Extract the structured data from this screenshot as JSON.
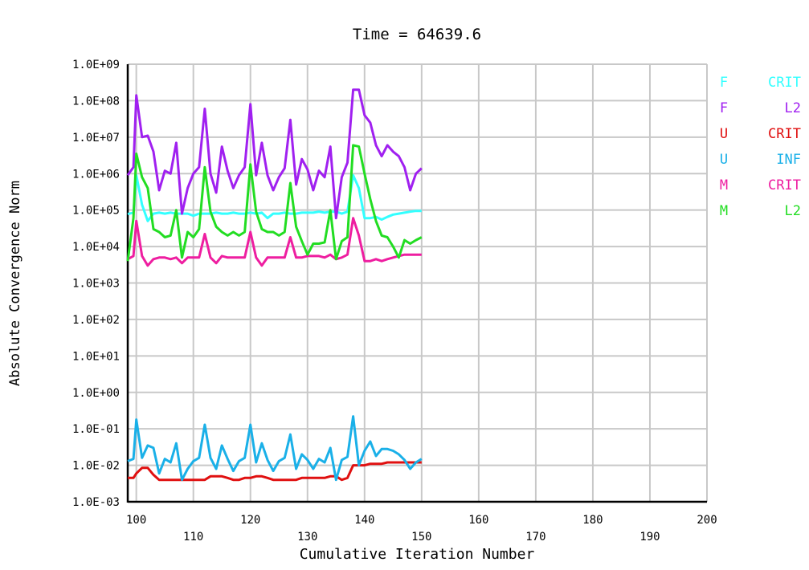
{
  "chart_data": {
    "type": "line",
    "title": "Time = 64639.6",
    "xlabel": "Cumulative Iteration Number",
    "ylabel": "Absolute Convergence Norm",
    "xlim": [
      98.5,
      200
    ],
    "ylim": [
      0.001,
      1000000000.0
    ],
    "yscale": "log",
    "grid": true,
    "legend_position": "right",
    "x_ticks": [
      100,
      110,
      120,
      130,
      140,
      150,
      160,
      170,
      180,
      190,
      200
    ],
    "x_tick_labels": [
      "100",
      "110",
      "120",
      "130",
      "140",
      "150",
      "160",
      "170",
      "180",
      "190",
      "200"
    ],
    "y_ticks": [
      0.001,
      0.01,
      0.1,
      1.0,
      10.0,
      100.0,
      1000.0,
      10000.0,
      100000.0,
      1000000.0,
      10000000.0,
      100000000.0,
      1000000000.0
    ],
    "y_tick_labels": [
      "1.0E-03",
      "1.0E-02",
      "1.0E-01",
      "1.0E+00",
      "1.0E+01",
      "1.0E+02",
      "1.0E+03",
      "1.0E+04",
      "1.0E+05",
      "1.0E+06",
      "1.0E+07",
      "1.0E+08",
      "1.0E+09"
    ],
    "x": [
      98.5,
      99.5,
      100,
      101,
      102,
      103,
      104,
      105,
      106,
      107,
      108,
      109,
      110,
      111,
      112,
      113,
      114,
      115,
      116,
      117,
      118,
      119,
      120,
      121,
      122,
      123,
      124,
      125,
      126,
      127,
      128,
      129,
      130,
      131,
      132,
      133,
      134,
      135,
      136,
      137,
      138,
      139,
      140,
      141,
      142,
      143,
      144,
      145,
      146,
      147,
      148,
      149,
      150
    ],
    "series": [
      {
        "name": "F CRIT",
        "label_left": "F",
        "label_right": "CRIT",
        "color": "#33ffff",
        "values": [
          78000.0,
          85000.0,
          900000.0,
          140000.0,
          50000.0,
          80000.0,
          85000.0,
          80000.0,
          85000.0,
          80000.0,
          80000.0,
          80000.0,
          70000.0,
          80000.0,
          80000.0,
          80000.0,
          85000.0,
          80000.0,
          80000.0,
          85000.0,
          80000.0,
          80000.0,
          85000.0,
          80000.0,
          85000.0,
          60000.0,
          80000.0,
          80000.0,
          85000.0,
          80000.0,
          80000.0,
          85000.0,
          85000.0,
          85000.0,
          90000.0,
          85000.0,
          90000.0,
          90000.0,
          80000.0,
          90000.0,
          900000.0,
          400000.0,
          60000.0,
          60000.0,
          65000.0,
          55000.0,
          65000.0,
          75000.0,
          80000.0,
          85000.0,
          90000.0,
          95000.0,
          95000.0
        ]
      },
      {
        "name": "F L2",
        "label_left": "F",
        "label_right": "L2",
        "color": "#a020f0",
        "values": [
          900000.0,
          1500000.0,
          140000000.0,
          10000000.0,
          11000000.0,
          4000000.0,
          350000.0,
          1200000.0,
          1000000.0,
          7000000.0,
          80000.0,
          400000.0,
          1000000.0,
          1500000.0,
          60000000.0,
          1000000.0,
          300000.0,
          5500000.0,
          1200000.0,
          400000.0,
          900000.0,
          1500000.0,
          80000000.0,
          900000.0,
          7000000.0,
          900000.0,
          350000.0,
          800000.0,
          1400000.0,
          30000000.0,
          500000.0,
          2500000.0,
          1300000.0,
          350000.0,
          1200000.0,
          800000.0,
          5500000.0,
          60000.0,
          800000.0,
          2000000.0,
          200000000.0,
          200000000.0,
          40000000.0,
          25000000.0,
          6000000.0,
          3000000.0,
          6000000.0,
          4000000.0,
          3000000.0,
          1500000.0,
          350000.0,
          1000000.0,
          1400000.0
        ]
      },
      {
        "name": "U CRIT",
        "label_left": "U",
        "label_right": "CRIT",
        "color": "#e01010",
        "values": [
          0.0045,
          0.0045,
          0.006,
          0.0085,
          0.0085,
          0.0055,
          0.004,
          0.004,
          0.004,
          0.004,
          0.004,
          0.004,
          0.004,
          0.004,
          0.004,
          0.005,
          0.005,
          0.005,
          0.0045,
          0.004,
          0.004,
          0.0045,
          0.0045,
          0.005,
          0.005,
          0.0045,
          0.004,
          0.004,
          0.004,
          0.004,
          0.004,
          0.0045,
          0.0045,
          0.0045,
          0.0045,
          0.0045,
          0.005,
          0.005,
          0.004,
          0.0045,
          0.01,
          0.01,
          0.01,
          0.011,
          0.011,
          0.011,
          0.012,
          0.012,
          0.012,
          0.012,
          0.012,
          0.012,
          0.012
        ]
      },
      {
        "name": "U INF",
        "label_left": "U",
        "label_right": "INF",
        "color": "#1ab0e8",
        "values": [
          0.013,
          0.015,
          0.18,
          0.016,
          0.035,
          0.03,
          0.006,
          0.015,
          0.012,
          0.04,
          0.004,
          0.008,
          0.013,
          0.016,
          0.13,
          0.016,
          0.008,
          0.035,
          0.015,
          0.007,
          0.013,
          0.016,
          0.13,
          0.012,
          0.04,
          0.014,
          0.007,
          0.013,
          0.016,
          0.07,
          0.008,
          0.02,
          0.014,
          0.008,
          0.015,
          0.012,
          0.03,
          0.004,
          0.014,
          0.017,
          0.22,
          0.01,
          0.025,
          0.045,
          0.018,
          0.028,
          0.028,
          0.025,
          0.02,
          0.014,
          0.008,
          0.012,
          0.015
        ]
      },
      {
        "name": "M CRIT",
        "label_left": "M",
        "label_right": "CRIT",
        "color": "#ee1ea0",
        "values": [
          4500.0,
          5500.0,
          50000.0,
          5500.0,
          3000.0,
          4500.0,
          5000.0,
          5000.0,
          4500.0,
          5000.0,
          3500.0,
          5000.0,
          5000.0,
          5000.0,
          22000.0,
          5000.0,
          3500.0,
          5500.0,
          5000.0,
          5000.0,
          5000.0,
          5000.0,
          25000.0,
          5000.0,
          3000.0,
          5000.0,
          5000.0,
          5000.0,
          5000.0,
          18000.0,
          5000.0,
          5000.0,
          5500.0,
          5500.0,
          5500.0,
          5000.0,
          6000.0,
          4500.0,
          5000.0,
          6000.0,
          60000.0,
          20000.0,
          4000.0,
          4000.0,
          4500.0,
          4000.0,
          4500.0,
          5000.0,
          5500.0,
          6000.0,
          6000.0,
          6000.0,
          6000.0
        ]
      },
      {
        "name": "M L2",
        "label_left": "M",
        "label_right": "L2",
        "color": "#22dd22",
        "values": [
          4000.0,
          60000.0,
          3500000.0,
          800000.0,
          400000.0,
          30000.0,
          25000.0,
          18000.0,
          20000.0,
          100000.0,
          5000.0,
          25000.0,
          18000.0,
          30000.0,
          1500000.0,
          90000.0,
          35000.0,
          25000.0,
          20000.0,
          25000.0,
          20000.0,
          25000.0,
          1800000.0,
          90000.0,
          30000.0,
          25000.0,
          25000.0,
          20000.0,
          25000.0,
          550000.0,
          35000.0,
          14000.0,
          6000.0,
          12000.0,
          12000.0,
          13000.0,
          100000.0,
          4500.0,
          14000.0,
          18000.0,
          6000000.0,
          5500000.0,
          1000000.0,
          200000.0,
          50000.0,
          20000.0,
          18000.0,
          10000.0,
          5000.0,
          15000.0,
          12000.0,
          15000.0,
          18000.0
        ]
      }
    ]
  }
}
